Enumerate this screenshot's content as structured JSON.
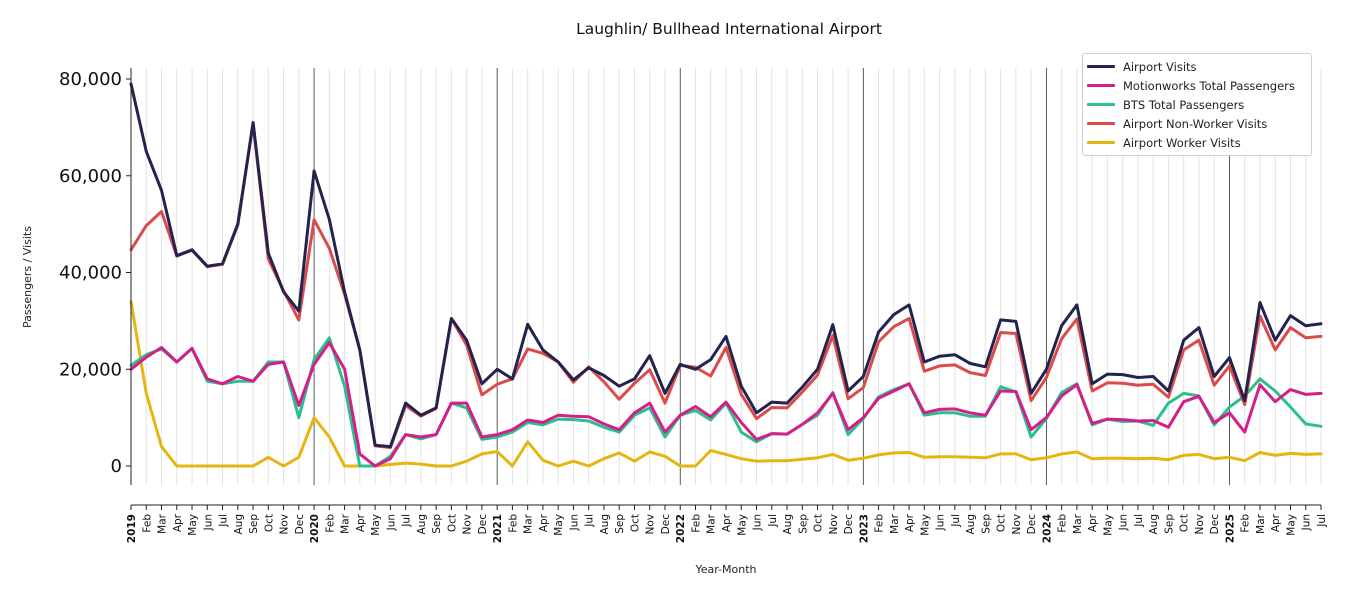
{
  "chart_data": {
    "type": "line",
    "title": "Laughlin/ Bullhead International Airport",
    "xlabel": "Year-Month",
    "ylabel": "Passengers / Visits",
    "ylim": [
      -4000,
      82000
    ],
    "yticks": [
      0,
      20000,
      40000,
      60000,
      80000
    ],
    "ytick_labels": [
      "0",
      "20,000",
      "40,000",
      "60,000",
      "80,000"
    ],
    "grid": "vertical monthly lines, dark lines at year starts",
    "legend_position": "top-right",
    "x": [
      "2019-01",
      "2019-02",
      "2019-03",
      "2019-04",
      "2019-05",
      "2019-06",
      "2019-07",
      "2019-08",
      "2019-09",
      "2019-10",
      "2019-11",
      "2019-12",
      "2020-01",
      "2020-02",
      "2020-03",
      "2020-04",
      "2020-05",
      "2020-06",
      "2020-07",
      "2020-08",
      "2020-09",
      "2020-10",
      "2020-11",
      "2020-12",
      "2021-01",
      "2021-02",
      "2021-03",
      "2021-04",
      "2021-05",
      "2021-06",
      "2021-07",
      "2021-08",
      "2021-09",
      "2021-10",
      "2021-11",
      "2021-12",
      "2022-01",
      "2022-02",
      "2022-03",
      "2022-04",
      "2022-05",
      "2022-06",
      "2022-07",
      "2022-08",
      "2022-09",
      "2022-10",
      "2022-11",
      "2022-12",
      "2023-01",
      "2023-02",
      "2023-03",
      "2023-04",
      "2023-05",
      "2023-06",
      "2023-07",
      "2023-08",
      "2023-09",
      "2023-10",
      "2023-11",
      "2023-12",
      "2024-01",
      "2024-02",
      "2024-03",
      "2024-04",
      "2024-05",
      "2024-06",
      "2024-07",
      "2024-08",
      "2024-09",
      "2024-10",
      "2024-11",
      "2024-12",
      "2025-01",
      "2025-02",
      "2025-03",
      "2025-04",
      "2025-05",
      "2025-06",
      "2025-07"
    ],
    "tick_labels": [
      "2019",
      "Feb",
      "Mar",
      "Apr",
      "May",
      "Jun",
      "Jul",
      "Aug",
      "Sep",
      "Oct",
      "Nov",
      "Dec",
      "2020",
      "Feb",
      "Mar",
      "Apr",
      "May",
      "Jun",
      "Jul",
      "Aug",
      "Sep",
      "Oct",
      "Nov",
      "Dec",
      "2021",
      "Feb",
      "Mar",
      "Apr",
      "May",
      "Jun",
      "Jul",
      "Aug",
      "Sep",
      "Oct",
      "Nov",
      "Dec",
      "2022",
      "Feb",
      "Mar",
      "Apr",
      "May",
      "Jun",
      "Jul",
      "Aug",
      "Sep",
      "Oct",
      "Nov",
      "Dec",
      "2023",
      "Feb",
      "Mar",
      "Apr",
      "May",
      "Jun",
      "Jul",
      "Aug",
      "Sep",
      "Oct",
      "Nov",
      "Dec",
      "2024",
      "Feb",
      "Mar",
      "Apr",
      "May",
      "Jun",
      "Jul",
      "Aug",
      "Sep",
      "Oct",
      "Nov",
      "Dec",
      "2025",
      "Feb",
      "Mar",
      "Apr",
      "May",
      "Jun",
      "Jul"
    ],
    "series": [
      {
        "name": "Airport Visits",
        "color": "#23234f",
        "values": [
          79000,
          65000,
          57000,
          43500,
          44700,
          41300,
          41800,
          50000,
          71000,
          44000,
          36000,
          32000,
          61000,
          51000,
          36000,
          24000,
          4300,
          4000,
          13000,
          10500,
          12000,
          30500,
          26000,
          17000,
          20000,
          18000,
          29300,
          24000,
          21500,
          17800,
          20300,
          18700,
          16500,
          18000,
          22800,
          15000,
          21000,
          20000,
          22000,
          26800,
          16500,
          11000,
          13200,
          13000,
          16300,
          20000,
          29200,
          15500,
          18500,
          27700,
          31300,
          33300,
          21500,
          22700,
          23000,
          21200,
          20500,
          30200,
          29900,
          15000,
          20000,
          29000,
          33300,
          17000,
          19000,
          18900,
          18300,
          18500,
          15500,
          26000,
          28600,
          18500,
          22400,
          13500,
          33800,
          26000,
          31100,
          29000,
          29400
        ]
      },
      {
        "name": "Motionworks Total Passengers",
        "color": "#d41f8a",
        "values": [
          20000,
          22500,
          24500,
          21500,
          24300,
          18000,
          17000,
          18500,
          17500,
          21000,
          21500,
          12500,
          21000,
          25500,
          20000,
          2500,
          0,
          1500,
          6500,
          6000,
          6500,
          13000,
          13000,
          6000,
          6500,
          7500,
          9500,
          9000,
          10500,
          10300,
          10200,
          8700,
          7500,
          11000,
          13000,
          7000,
          10500,
          12300,
          10200,
          13200,
          9000,
          5500,
          6700,
          6600,
          8600,
          11000,
          15000,
          7500,
          10000,
          14000,
          15500,
          17000,
          11000,
          11700,
          11800,
          11000,
          10500,
          15500,
          15400,
          7500,
          10000,
          14500,
          16800,
          8800,
          9700,
          9600,
          9300,
          9400,
          8000,
          13300,
          14400,
          9000,
          11000,
          7000,
          16800,
          13300,
          15800,
          14800,
          15000
        ]
      },
      {
        "name": "BTS Total Passengers",
        "color": "#2bbf8b",
        "values": [
          20800,
          23000,
          24200,
          21500,
          24300,
          17500,
          17000,
          17500,
          17500,
          21500,
          21500,
          10000,
          22000,
          26500,
          16500,
          0,
          0,
          2000,
          6500,
          5600,
          6500,
          13000,
          12000,
          5500,
          6000,
          7000,
          9000,
          8500,
          9700,
          9600,
          9300,
          8000,
          7000,
          10500,
          12000,
          6000,
          10500,
          11500,
          9500,
          13000,
          7000,
          5000,
          6700,
          6600,
          8600,
          10500,
          15200,
          6500,
          9800,
          14300,
          15800,
          17000,
          10500,
          11000,
          11000,
          10300,
          10300,
          16400,
          15300,
          6000,
          9800,
          15200,
          17000,
          8500,
          9700,
          9200,
          9300,
          8400,
          13000,
          15000,
          14500,
          8500,
          12200,
          14500,
          18000,
          15500,
          12200,
          8700,
          8200
        ]
      },
      {
        "name": "Airport Non-Worker Visits",
        "color": "#dc4b4b",
        "values": [
          44700,
          49700,
          52600,
          43400,
          44600,
          41200,
          41700,
          49800,
          70800,
          42800,
          36200,
          30200,
          50900,
          45000,
          35500,
          24000,
          4200,
          3800,
          12500,
          10300,
          11900,
          30500,
          25000,
          14700,
          16900,
          18000,
          24200,
          23300,
          21500,
          17300,
          20500,
          17400,
          13800,
          17100,
          19900,
          13000,
          20800,
          20400,
          18600,
          24500,
          14800,
          9800,
          12100,
          12000,
          15300,
          18800,
          27000,
          13900,
          16200,
          25700,
          28800,
          30500,
          19600,
          20700,
          20900,
          19300,
          18700,
          27600,
          27400,
          13500,
          18300,
          26300,
          30400,
          15500,
          17200,
          17100,
          16700,
          16900,
          14200,
          24000,
          26000,
          16700,
          20700,
          12700,
          31000,
          24000,
          28600,
          26500,
          26800
        ]
      },
      {
        "name": "Airport Worker Visits",
        "color": "#e5b511",
        "values": [
          34000,
          15000,
          4000,
          0,
          0,
          0,
          0,
          0,
          0,
          1800,
          0,
          1800,
          10000,
          6000,
          0,
          0,
          0,
          300,
          600,
          400,
          0,
          0,
          1000,
          2500,
          3000,
          0,
          5000,
          1200,
          0,
          1000,
          0,
          1500,
          2700,
          1000,
          2900,
          2000,
          0,
          0,
          3200,
          2400,
          1500,
          1000,
          1100,
          1100,
          1400,
          1700,
          2400,
          1200,
          1600,
          2300,
          2700,
          2800,
          1800,
          1900,
          1900,
          1800,
          1700,
          2500,
          2500,
          1300,
          1700,
          2500,
          2900,
          1500,
          1600,
          1600,
          1500,
          1600,
          1300,
          2200,
          2400,
          1500,
          1800,
          1100,
          2800,
          2200,
          2600,
          2400,
          2500
        ]
      }
    ]
  }
}
